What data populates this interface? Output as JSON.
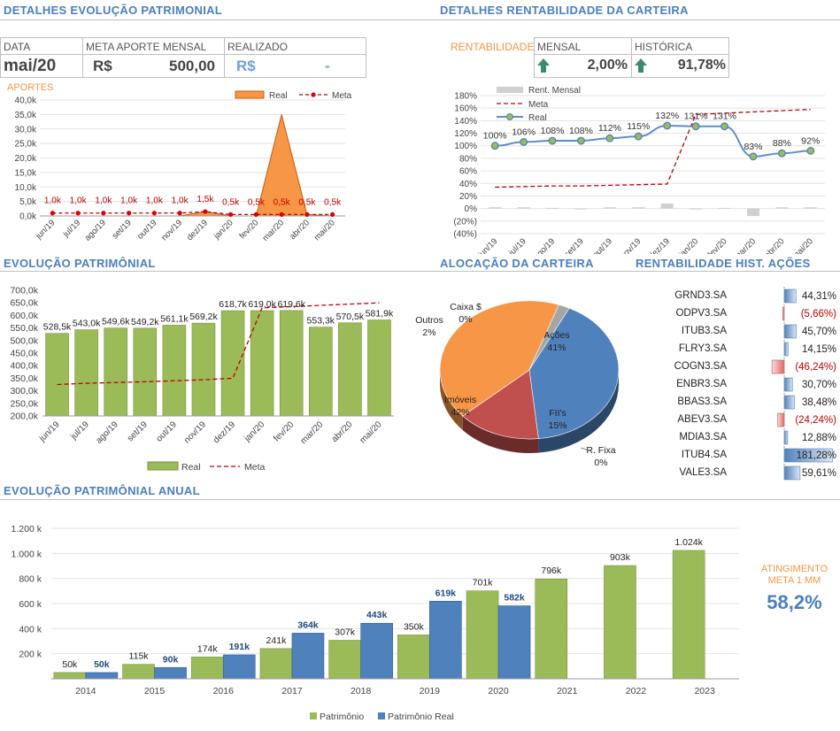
{
  "sections": {
    "patrimonial_details": "DETALHES EVOLUÇÃO PATRIMONIAL",
    "portfolio_return": "DETALHES RENTABILIDADE DA CARTEIRA",
    "patrimonial_evolution": "EVOLUÇÃO PATRIMÔNIAL",
    "allocation": "ALOCAÇÃO DA CARTEIRA",
    "stock_returns": "RENTABILIDADE HIST. AÇÕES",
    "annual_evolution": "EVOLUÇÃO PATRIMÔNIAL ANUAL"
  },
  "summary": {
    "date_header": "DATA",
    "goal_header": "META APORTE MENSAL",
    "realized_header": "REALIZADO",
    "date_value": "mai/20",
    "goal_currency": "R$",
    "goal_value": "500,00",
    "realized_currency": "R$",
    "realized_value": "-"
  },
  "returns_box": {
    "label": "RENTABILIDADE",
    "monthly_header": "MENSAL",
    "historical_header": "HISTÓRICA",
    "monthly_value": "2,00%",
    "historical_value": "91,78%",
    "arrow_icon": "up-arrow-icon"
  },
  "colors": {
    "title_blue": "#4a7fc1",
    "orange": "#f79646",
    "green": "#9bbb59",
    "blue": "#4f81bd",
    "red": "#c00000",
    "gray": "#a5a5a5"
  },
  "kpi": {
    "label_line1": "ATINGIMENTO",
    "label_line2": "META 1 MM",
    "value": "58,2%"
  },
  "chart_data": [
    {
      "id": "aportes",
      "type": "area",
      "title": "APORTES",
      "categories": [
        "jun/19",
        "jul/19",
        "ago/19",
        "set/19",
        "out/19",
        "nov/19",
        "dez/19",
        "jan/20",
        "fev/20",
        "mar/20",
        "abr/20",
        "mai/20"
      ],
      "y_ticks": [
        "0,0k",
        "5,0k",
        "10,0k",
        "15,0k",
        "20,0k",
        "25,0k",
        "30,0k",
        "35,0k",
        "40,0k"
      ],
      "ylim": [
        0,
        40
      ],
      "series": [
        {
          "name": "Real",
          "values": [
            0,
            0,
            0,
            0,
            0,
            0,
            1.5,
            0,
            0,
            35,
            0.5,
            0
          ]
        },
        {
          "name": "Meta",
          "values": [
            1,
            1,
            1,
            1,
            1,
            1,
            1.5,
            0.5,
            0.5,
            0.5,
            0.5,
            0.5
          ]
        }
      ],
      "data_labels": [
        "1,0k",
        "1,0k",
        "1,0k",
        "1,0k",
        "1,0k",
        "1,0k",
        "1,5k",
        "0,5k",
        "0,5k",
        "0,5k",
        "0,5k",
        "0,5k"
      ]
    },
    {
      "id": "rentabilidade",
      "type": "line",
      "categories": [
        "jun/19",
        "jul/19",
        "ago/19",
        "set/19",
        "out/19",
        "nov/19",
        "dez/19",
        "jan/20",
        "fev/20",
        "mar/20",
        "abr/20",
        "mai/20"
      ],
      "y_ticks": [
        "(40%)",
        "(20%)",
        "0%",
        "20%",
        "40%",
        "60%",
        "80%",
        "100%",
        "120%",
        "140%",
        "160%",
        "180%"
      ],
      "ylim": [
        -40,
        180
      ],
      "series": [
        {
          "name": "Rent. Mensal",
          "values": [
            2,
            2,
            1,
            -1,
            2,
            2,
            8,
            -1,
            1,
            -12,
            2,
            2
          ]
        },
        {
          "name": "Meta",
          "values": [
            34,
            35,
            36,
            36,
            37,
            38,
            39,
            150,
            152,
            154,
            156,
            158
          ]
        },
        {
          "name": "Real",
          "values": [
            100,
            106,
            108,
            108,
            112,
            115,
            132,
            131,
            131,
            83,
            88,
            92
          ]
        }
      ],
      "data_labels": [
        "100%",
        "106%",
        "108%",
        "108%",
        "112%",
        "115%",
        "132%",
        "131%",
        "131%",
        "83%",
        "88%",
        "92%"
      ]
    },
    {
      "id": "evolucao",
      "type": "bar",
      "categories": [
        "jun/19",
        "jul/19",
        "ago/19",
        "set/19",
        "out/19",
        "nov/19",
        "dez/19",
        "jan/20",
        "fev/20",
        "mar/20",
        "abr/20",
        "mai/20"
      ],
      "y_ticks": [
        "200,0k",
        "250,0k",
        "300,0k",
        "350,0k",
        "400,0k",
        "450,0k",
        "500,0k",
        "550,0k",
        "600,0k",
        "650,0k",
        "700,0k"
      ],
      "ylim": [
        200,
        700
      ],
      "series": [
        {
          "name": "Real",
          "values": [
            528.5,
            543.0,
            549.6,
            549.2,
            561.1,
            569.2,
            618.7,
            619.0,
            619.6,
            553.3,
            570.5,
            581.9
          ]
        },
        {
          "name": "Meta",
          "values": [
            325,
            330,
            333,
            336,
            340,
            344,
            350,
            630,
            635,
            640,
            645,
            650
          ]
        }
      ],
      "data_labels": [
        "528,5k",
        "543,0k",
        "549,6k",
        "549,2k",
        "561,1k",
        "569,2k",
        "618,7k",
        "619,0k",
        "619,6k",
        "553,3k",
        "570,5k",
        "581,9k"
      ]
    },
    {
      "id": "alocacao",
      "type": "pie",
      "slices": [
        {
          "name": "Ações",
          "value": 41,
          "label": "41%",
          "color": "#4f81bd"
        },
        {
          "name": "FII's",
          "value": 15,
          "label": "15%",
          "color": "#c0504d"
        },
        {
          "name": "R. Fixa",
          "value": 0,
          "label": "0%",
          "color": "#8064a2"
        },
        {
          "name": "Imóveis",
          "value": 42,
          "label": "42%",
          "color": "#f79646"
        },
        {
          "name": "Outros",
          "value": 2,
          "label": "2%",
          "color": "#a5a5a5"
        },
        {
          "name": "Caixa $",
          "value": 0,
          "label": "0%",
          "color": "#9bbb59"
        }
      ]
    },
    {
      "id": "acoes",
      "type": "table",
      "rows": [
        {
          "ticker": "GRND3.SA",
          "label": "44,31%",
          "value": 44.31
        },
        {
          "ticker": "ODPV3.SA",
          "label": "(5,66%)",
          "value": -5.66
        },
        {
          "ticker": "ITUB3.SA",
          "label": "45,70%",
          "value": 45.7
        },
        {
          "ticker": "FLRY3.SA",
          "label": "14,15%",
          "value": 14.15
        },
        {
          "ticker": "COGN3.SA",
          "label": "(46,24%)",
          "value": -46.24
        },
        {
          "ticker": "ENBR3.SA",
          "label": "30,70%",
          "value": 30.7
        },
        {
          "ticker": "BBAS3.SA",
          "label": "38,48%",
          "value": 38.48
        },
        {
          "ticker": "ABEV3.SA",
          "label": "(24,24%)",
          "value": -24.24
        },
        {
          "ticker": "MDIA3.SA",
          "label": "12,88%",
          "value": 12.88
        },
        {
          "ticker": "ITUB4.SA",
          "label": "181,28%",
          "value": 181.28
        },
        {
          "ticker": "VALE3.SA",
          "label": "59,61%",
          "value": 59.61
        }
      ]
    },
    {
      "id": "anual",
      "type": "bar",
      "categories": [
        "2014",
        "2015",
        "2016",
        "2017",
        "2018",
        "2019",
        "2020",
        "2021",
        "2022",
        "2023"
      ],
      "y_ticks": [
        "200 k",
        "400 k",
        "600 k",
        "800 k",
        "1.000 k",
        "1.200 k"
      ],
      "ylim": [
        0,
        1200
      ],
      "series": [
        {
          "name": "Patrimônio",
          "values": [
            50,
            115,
            174,
            241,
            307,
            350,
            701,
            796,
            903,
            1024
          ],
          "labels": [
            "50k",
            "115k",
            "174k",
            "241k",
            "307k",
            "350k",
            "701k",
            "796k",
            "903k",
            "1.024k"
          ]
        },
        {
          "name": "Patrimônio Real",
          "values": [
            50,
            90,
            191,
            364,
            443,
            619,
            582,
            null,
            null,
            null
          ],
          "labels": [
            "50k",
            "90k",
            "191k",
            "364k",
            "443k",
            "619k",
            "582k",
            "",
            "",
            ""
          ]
        }
      ]
    }
  ]
}
